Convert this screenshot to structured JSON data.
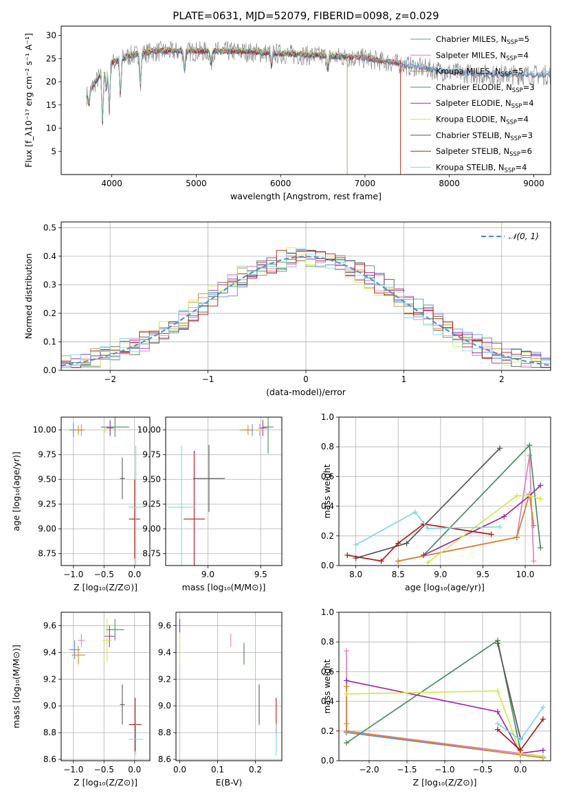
{
  "title": "PLATE=0631, MJD=52079, FIBERID=0098, z=0.029",
  "colors": {
    "Chabrier MILES": "#5b8fd6",
    "Salpeter MILES": "#e07fbf",
    "Kroupa MILES": "#d9862a",
    "Chabrier ELODIE": "#4d8a5e",
    "Salpeter ELODIE": "#9b2aa8",
    "Kroupa ELODIE": "#d2e84a",
    "Chabrier STELIB": "#555555",
    "Salpeter STELIB": "#b01818",
    "Kroupa STELIB": "#7fd8e0",
    "data": "#888888",
    "normal": "#5b8fd6"
  },
  "chart_data": [
    {
      "id": "spectrum",
      "type": "line",
      "title": "PLATE=0631, MJD=52079, FIBERID=0098, z=0.029",
      "xlabel": "wavelength [Angstrom, rest frame]",
      "ylabel": "Flux [f_λ10⁻¹⁷ erg cm⁻² s⁻¹ A⁻¹]",
      "xlim": [
        3400,
        9200
      ],
      "ylim": [
        0,
        32
      ],
      "xticks": [
        4000,
        5000,
        6000,
        7000,
        8000,
        9000
      ],
      "yticks": [
        5,
        10,
        15,
        20,
        25,
        30
      ],
      "grid": false,
      "legend_position": "top-right",
      "legend": [
        {
          "label": "Chabrier MILES, N",
          "n": "=5"
        },
        {
          "label": "Salpeter MILES, N",
          "n": "=4"
        },
        {
          "label": "Kroupa MILES, N",
          "n": "=5"
        },
        {
          "label": "Chabrier ELODIE, N",
          "n": "=3"
        },
        {
          "label": "Salpeter ELODIE, N",
          "n": "=4"
        },
        {
          "label": "Kroupa ELODIE, N",
          "n": "=4"
        },
        {
          "label": "Chabrier STELIB, N",
          "n": "=3"
        },
        {
          "label": "Salpeter STELIB, N",
          "n": "=6"
        },
        {
          "label": "Kroupa STELIB, N",
          "n": "=4"
        }
      ],
      "continuum": [
        [
          3700,
          17
        ],
        [
          3850,
          21
        ],
        [
          4000,
          24
        ],
        [
          4200,
          25.5
        ],
        [
          4500,
          26.5
        ],
        [
          5000,
          26.5
        ],
        [
          5500,
          26.5
        ],
        [
          6000,
          26
        ],
        [
          6500,
          25.5
        ],
        [
          7000,
          25
        ],
        [
          7500,
          23.5
        ],
        [
          8000,
          22
        ],
        [
          8500,
          21.5
        ],
        [
          9000,
          21.5
        ],
        [
          9200,
          21.5
        ]
      ],
      "dips": [
        [
          3730,
          3
        ],
        [
          3890,
          11
        ],
        [
          3935,
          5
        ],
        [
          3970,
          10
        ],
        [
          4102,
          8
        ],
        [
          4340,
          7
        ],
        [
          4861,
          4
        ],
        [
          5175,
          3
        ],
        [
          5893,
          3
        ],
        [
          6563,
          3
        ]
      ]
    },
    {
      "id": "residual-hist",
      "type": "bar",
      "xlabel": "(data-model)/error",
      "ylabel": "Normed distribution",
      "xlim": [
        -2.5,
        2.5
      ],
      "ylim": [
        0,
        0.52
      ],
      "xticks": [
        -2,
        -1,
        0,
        1,
        2
      ],
      "yticks": [
        0.0,
        0.1,
        0.2,
        0.3,
        0.4,
        0.5
      ],
      "grid": true,
      "legend_position": "top-right",
      "legend_label": "𝒩(0, 1)",
      "bin_width": 0.1
    },
    {
      "id": "age-vs-Z",
      "type": "scatter",
      "xlabel": "Z [log₁₀(Z/Z⊙)]",
      "ylabel": "age  [log₁₀(age/yr)]",
      "xlim": [
        -1.2,
        0.25
      ],
      "ylim": [
        8.63,
        10.13
      ],
      "xticks": [
        -1.0,
        -0.5,
        0.0
      ],
      "yticks": [
        8.75,
        9.0,
        9.25,
        9.5,
        9.75,
        10.0
      ],
      "grid": true,
      "points": [
        {
          "s": "Chabrier MILES",
          "x": -1.0,
          "y": 10.0,
          "ex": 0.07,
          "ey": 0.07
        },
        {
          "s": "Salpeter MILES",
          "x": -0.87,
          "y": 10.0,
          "ex": 0.06,
          "ey": 0.06
        },
        {
          "s": "Kroupa MILES",
          "x": -0.92,
          "y": 10.0,
          "ex": 0.08,
          "ey": 0.05
        },
        {
          "s": "Chabrier ELODIE",
          "x": -0.32,
          "y": 10.03,
          "ex": 0.23,
          "ey": 0.1
        },
        {
          "s": "Salpeter ELODIE",
          "x": -0.4,
          "y": 10.02,
          "ex": 0.06,
          "ey": 0.08
        },
        {
          "s": "Kroupa ELODIE",
          "x": -0.48,
          "y": 10.0,
          "ex": 0.07,
          "ey": 0.03
        },
        {
          "s": "Chabrier STELIB",
          "x": -0.2,
          "y": 9.51,
          "ex": 0.04,
          "ey": 0.21
        },
        {
          "s": "Salpeter STELIB",
          "x": 0.0,
          "y": 9.1,
          "ex": 0.09,
          "ey": 0.4
        },
        {
          "s": "Kroupa STELIB",
          "x": 0.02,
          "y": 9.22,
          "ex": 0.12,
          "ey": 0.62
        }
      ]
    },
    {
      "id": "age-vs-mass",
      "type": "scatter",
      "xlabel": "mass [log₁₀(M/M⊙)]",
      "ylabel": "",
      "xlim": [
        8.6,
        9.7
      ],
      "ylim": [
        8.63,
        10.13
      ],
      "xticks": [
        9.0,
        9.5
      ],
      "yticks": [
        8.75,
        9.0,
        9.25,
        9.5,
        9.75,
        10.0
      ],
      "grid": true,
      "points": [
        {
          "s": "Chabrier MILES",
          "x": 9.42,
          "y": 10.0,
          "ex": 0.08,
          "ey": 0.06
        },
        {
          "s": "Salpeter MILES",
          "x": 9.49,
          "y": 10.0,
          "ex": 0.05,
          "ey": 0.06
        },
        {
          "s": "Kroupa MILES",
          "x": 9.38,
          "y": 10.0,
          "ex": 0.08,
          "ey": 0.05
        },
        {
          "s": "Chabrier ELODIE",
          "x": 9.57,
          "y": 10.03,
          "ex": 0.05,
          "ey": 0.27
        },
        {
          "s": "Salpeter ELODIE",
          "x": 9.52,
          "y": 10.02,
          "ex": 0.04,
          "ey": 0.08
        },
        {
          "s": "Kroupa ELODIE",
          "x": 9.49,
          "y": 10.0,
          "ex": 0.06,
          "ey": 0.03
        },
        {
          "s": "Chabrier STELIB",
          "x": 9.01,
          "y": 9.51,
          "ex": 0.15,
          "ey": 0.34
        },
        {
          "s": "Salpeter STELIB",
          "x": 8.87,
          "y": 9.1,
          "ex": 0.1,
          "ey": 0.69
        },
        {
          "s": "Kroupa STELIB",
          "x": 8.75,
          "y": 9.22,
          "ex": 0.13,
          "ey": 0.62
        }
      ]
    },
    {
      "id": "weight-vs-age",
      "type": "line",
      "xlabel": "age  [log₁₀(age/yr)]",
      "ylabel": "mass weight",
      "xlim": [
        7.8,
        10.3
      ],
      "ylim": [
        0,
        1
      ],
      "xticks": [
        8.0,
        8.5,
        9.0,
        9.5,
        10.0
      ],
      "yticks": [
        0.0,
        0.2,
        0.4,
        0.6,
        0.8,
        1.0
      ],
      "grid": true,
      "series": [
        {
          "s": "Chabrier MILES",
          "pts": [
            [
              8.5,
              0.03
            ],
            [
              9.9,
              0.19
            ],
            [
              10.05,
              0.48
            ],
            [
              10.1,
              0.27
            ]
          ]
        },
        {
          "s": "Salpeter MILES",
          "pts": [
            [
              8.5,
              0.03
            ],
            [
              9.9,
              0.19
            ],
            [
              10.05,
              0.74
            ],
            [
              10.1,
              0.03
            ]
          ]
        },
        {
          "s": "Kroupa MILES",
          "pts": [
            [
              8.5,
              0.03
            ],
            [
              9.9,
              0.19
            ],
            [
              10.05,
              0.48
            ],
            [
              10.1,
              0.27
            ]
          ]
        },
        {
          "s": "Chabrier ELODIE",
          "pts": [
            [
              8.8,
              0.07
            ],
            [
              10.05,
              0.81
            ],
            [
              10.18,
              0.12
            ]
          ]
        },
        {
          "s": "Salpeter ELODIE",
          "pts": [
            [
              8.8,
              0.07
            ],
            [
              9.75,
              0.33
            ],
            [
              10.05,
              0.47
            ],
            [
              10.18,
              0.54
            ]
          ]
        },
        {
          "s": "Kroupa ELODIE",
          "pts": [
            [
              8.85,
              0.02
            ],
            [
              9.9,
              0.47
            ],
            [
              10.05,
              0.47
            ],
            [
              10.18,
              0.45
            ]
          ]
        },
        {
          "s": "Chabrier STELIB",
          "pts": [
            [
              8.0,
              0.05
            ],
            [
              8.6,
              0.15
            ],
            [
              9.7,
              0.79
            ]
          ]
        },
        {
          "s": "Salpeter STELIB",
          "pts": [
            [
              7.9,
              0.07
            ],
            [
              8.3,
              0.03
            ],
            [
              8.5,
              0.15
            ],
            [
              8.8,
              0.28
            ],
            [
              9.6,
              0.21
            ]
          ]
        },
        {
          "s": "Kroupa STELIB",
          "pts": [
            [
              8.0,
              0.14
            ],
            [
              8.7,
              0.36
            ],
            [
              8.85,
              0.25
            ],
            [
              9.7,
              0.26
            ]
          ]
        }
      ]
    },
    {
      "id": "mass-vs-Z",
      "type": "scatter",
      "xlabel": "Z [log₁₀(Z/Z⊙)]",
      "ylabel": "mass [log₁₀(M/M⊙)]",
      "xlim": [
        -1.2,
        0.25
      ],
      "ylim": [
        8.59,
        9.7
      ],
      "xticks": [
        -1.0,
        -0.5,
        0.0
      ],
      "yticks": [
        8.6,
        8.8,
        9.0,
        9.2,
        9.4,
        9.6
      ],
      "grid": true,
      "points": [
        {
          "s": "Chabrier MILES",
          "x": -0.98,
          "y": 9.42,
          "ex": 0.09,
          "ey": 0.07
        },
        {
          "s": "Salpeter MILES",
          "x": -0.87,
          "y": 9.49,
          "ex": 0.06,
          "ey": 0.05
        },
        {
          "s": "Kroupa MILES",
          "x": -0.92,
          "y": 9.38,
          "ex": 0.11,
          "ey": 0.07
        },
        {
          "s": "Chabrier ELODIE",
          "x": -0.32,
          "y": 9.57,
          "ex": 0.15,
          "ey": 0.08
        },
        {
          "s": "Salpeter ELODIE",
          "x": -0.41,
          "y": 9.52,
          "ex": 0.08,
          "ey": 0.08
        },
        {
          "s": "Kroupa ELODIE",
          "x": -0.45,
          "y": 9.49,
          "ex": 0.08,
          "ey": 0.16
        },
        {
          "s": "Chabrier STELIB",
          "x": -0.2,
          "y": 9.01,
          "ex": 0.04,
          "ey": 0.15
        },
        {
          "s": "Salpeter STELIB",
          "x": 0.01,
          "y": 8.86,
          "ex": 0.1,
          "ey": 0.2
        },
        {
          "s": "Kroupa STELIB",
          "x": 0.02,
          "y": 8.75,
          "ex": 0.12,
          "ey": 0.12
        }
      ]
    },
    {
      "id": "mass-vs-ebv",
      "type": "scatter",
      "xlabel": "E(B-V)",
      "ylabel": "",
      "xlim": [
        -0.01,
        0.27
      ],
      "ylim": [
        8.59,
        9.7
      ],
      "xticks": [
        0.0,
        0.1,
        0.2
      ],
      "yticks": [
        8.6,
        8.8,
        9.0,
        9.2,
        9.4,
        9.6
      ],
      "grid": true,
      "points": [
        {
          "s": "Chabrier MILES",
          "x": 0.0,
          "y": 9.42,
          "ey": 0.04
        },
        {
          "s": "Salpeter MILES",
          "x": 0.135,
          "y": 9.49,
          "ey": 0.05
        },
        {
          "s": "Kroupa MILES",
          "x": 0.17,
          "y": 9.38,
          "ey": 0.07
        },
        {
          "s": "Chabrier ELODIE",
          "x": 0.17,
          "y": 9.39,
          "ey": 0.08
        },
        {
          "s": "Salpeter ELODIE",
          "x": 0.0,
          "y": 9.6,
          "ey": 0.05
        },
        {
          "s": "Kroupa ELODIE",
          "x": 0.0,
          "y": 9.44,
          "ey": 0.1
        },
        {
          "s": "Chabrier STELIB",
          "x": 0.21,
          "y": 9.01,
          "ey": 0.15
        },
        {
          "s": "Salpeter STELIB",
          "x": 0.255,
          "y": 8.93,
          "ey": 0.13
        },
        {
          "s": "Kroupa STELIB",
          "x": 0.255,
          "y": 8.75,
          "ey": 0.12
        }
      ]
    },
    {
      "id": "weight-vs-Z",
      "type": "line",
      "xlabel": "Z [log₁₀(Z/Z⊙)]",
      "ylabel": "mass weight",
      "xlim": [
        -2.4,
        0.4
      ],
      "ylim": [
        0,
        1
      ],
      "xticks": [
        -2.0,
        -1.5,
        -1.0,
        -0.5,
        0.0
      ],
      "yticks": [
        0.0,
        0.2,
        0.4,
        0.6,
        0.8,
        1.0
      ],
      "grid": true,
      "series": [
        {
          "s": "Chabrier MILES",
          "pts": [
            [
              -2.3,
              0.19
            ],
            [
              0.0,
              0.04
            ],
            [
              0.3,
              0.02
            ]
          ]
        },
        {
          "s": "Salpeter MILES",
          "pts": [
            [
              -2.3,
              0.74
            ],
            [
              -2.3,
              0.5
            ],
            [
              -2.3,
              0.2
            ],
            [
              0.0,
              0.05
            ],
            [
              0.3,
              0.03
            ]
          ]
        },
        {
          "s": "Kroupa MILES",
          "pts": [
            [
              -2.3,
              0.5
            ],
            [
              -2.3,
              0.25
            ],
            [
              -2.3,
              0.2
            ],
            [
              0.0,
              0.04
            ],
            [
              0.3,
              0.02
            ]
          ]
        },
        {
          "s": "Chabrier ELODIE",
          "pts": [
            [
              -2.3,
              0.12
            ],
            [
              -0.3,
              0.81
            ],
            [
              0.0,
              0.07
            ]
          ]
        },
        {
          "s": "Salpeter ELODIE",
          "pts": [
            [
              -2.3,
              0.54
            ],
            [
              -0.3,
              0.33
            ],
            [
              0.0,
              0.05
            ],
            [
              0.3,
              0.07
            ]
          ]
        },
        {
          "s": "Kroupa ELODIE",
          "pts": [
            [
              -2.3,
              0.45
            ],
            [
              -0.3,
              0.47
            ],
            [
              0.0,
              0.05
            ],
            [
              0.3,
              0.03
            ]
          ]
        },
        {
          "s": "Chabrier STELIB",
          "pts": [
            [
              -0.3,
              0.79
            ],
            [
              0.0,
              0.15
            ]
          ]
        },
        {
          "s": "Salpeter STELIB",
          "pts": [
            [
              -0.3,
              0.21
            ],
            [
              0.0,
              0.07
            ],
            [
              0.3,
              0.28
            ]
          ]
        },
        {
          "s": "Kroupa STELIB",
          "pts": [
            [
              -0.3,
              0.25
            ],
            [
              0.0,
              0.14
            ],
            [
              0.3,
              0.36
            ]
          ]
        }
      ]
    }
  ]
}
